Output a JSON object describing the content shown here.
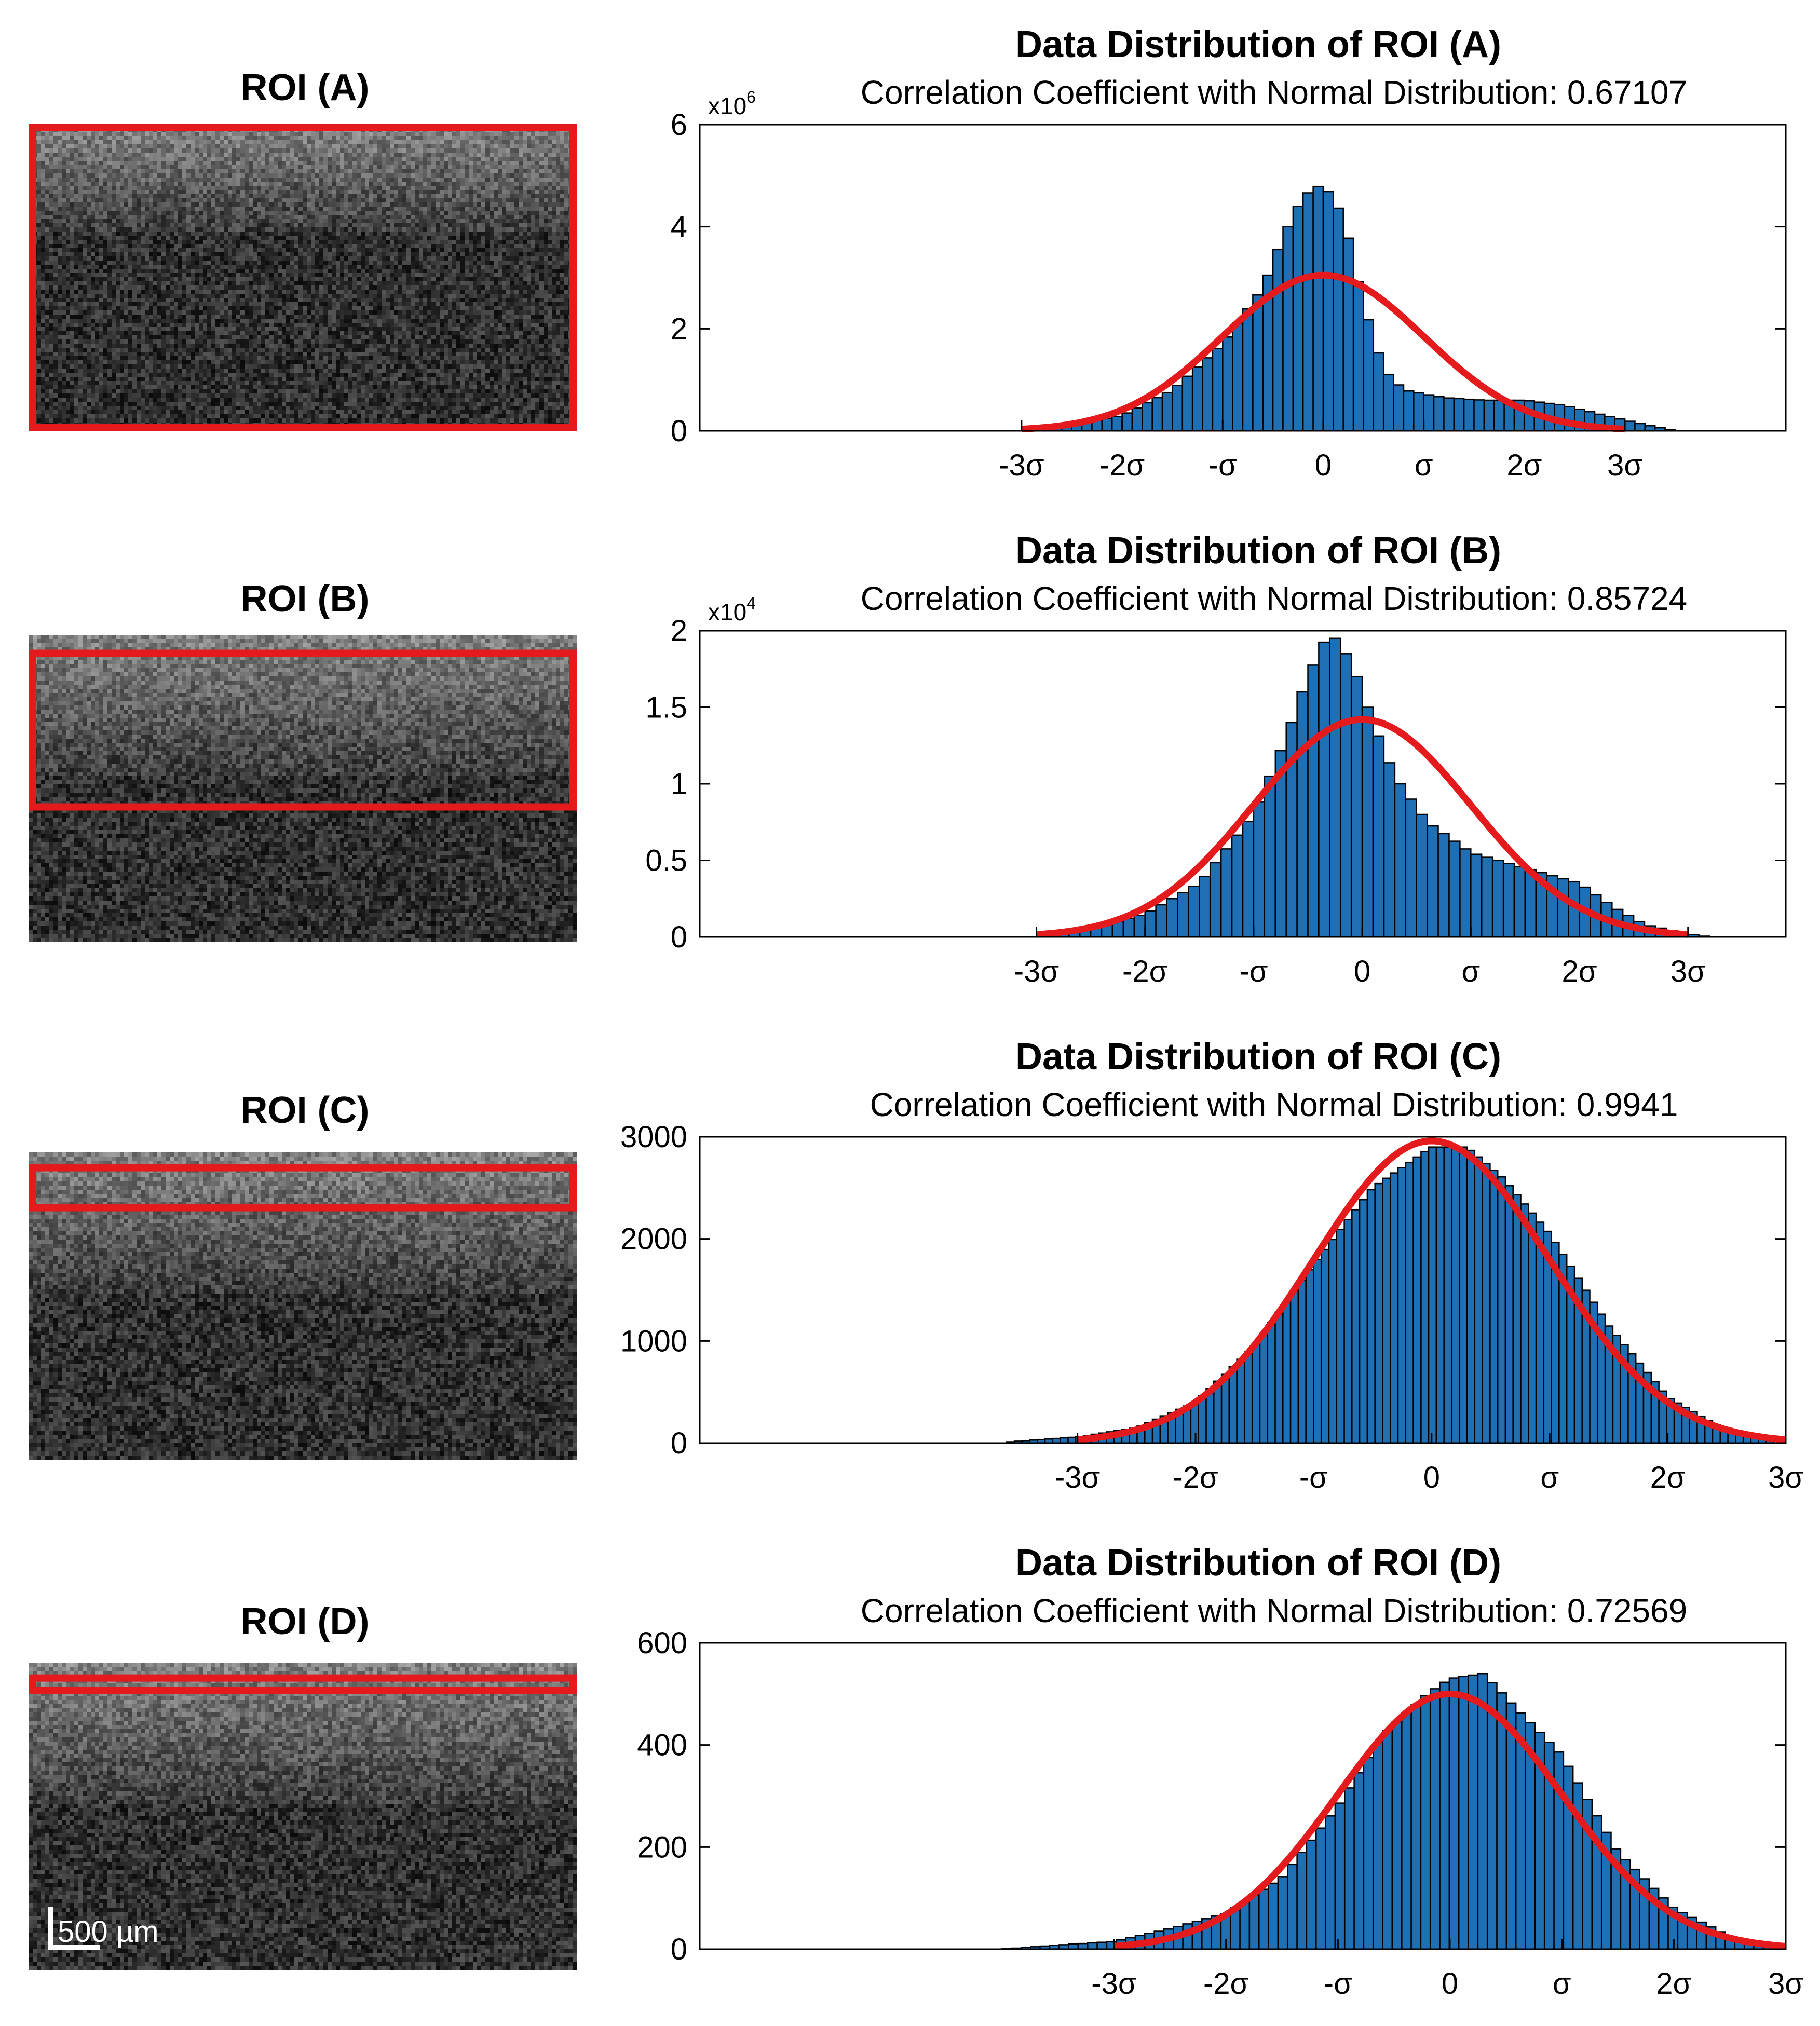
{
  "figure": {
    "scale_bar_label": "500 µm",
    "colors": {
      "bar_fill": "#1f6fb4",
      "bar_edge": "#000000",
      "fit_curve": "#e41a1c",
      "roi_box": "#e41a1c",
      "oct_background": "#3a3a3a"
    }
  },
  "rows": [
    {
      "roi_title": "ROI (A)",
      "roi_box": {
        "top_frac": 0.0,
        "bottom_frac": 1.0
      },
      "image_layer_frac": 0.35,
      "chart_title": "Data Distribution of ROI (A)",
      "chart_subtitle": "Correlation Coefficient with Normal Distribution: 0.67107"
    },
    {
      "roi_title": "ROI (B)",
      "roi_box": {
        "top_frac": 0.06,
        "bottom_frac": 0.56
      },
      "image_layer_frac": 0.45,
      "chart_title": "Data Distribution of ROI (B)",
      "chart_subtitle": "Correlation Coefficient with Normal Distribution: 0.85724"
    },
    {
      "roi_title": "ROI (C)",
      "roi_box": {
        "top_frac": 0.05,
        "bottom_frac": 0.18
      },
      "image_layer_frac": 0.45,
      "chart_title": "Data Distribution of ROI (C)",
      "chart_subtitle": "Correlation Coefficient with Normal Distribution: 0.9941"
    },
    {
      "roi_title": "ROI (D)",
      "roi_box": {
        "top_frac": 0.05,
        "bottom_frac": 0.09
      },
      "image_layer_frac": 0.45,
      "chart_title": "Data Distribution of ROI (D)",
      "chart_subtitle": "Correlation Coefficient with Normal Distribution: 0.72569"
    }
  ],
  "chart_data": [
    {
      "type": "bar",
      "title": "Data Distribution of ROI (A)",
      "subtitle": "Correlation Coefficient with Normal Distribution: 0.67107",
      "xlabel": "",
      "ylabel": "",
      "multiplier_label": "x10",
      "multiplier_exponent": "6",
      "x_range_sigma": [
        -6.2,
        4.6
      ],
      "ylim": [
        0,
        6
      ],
      "yticks": [
        0,
        2,
        4,
        6
      ],
      "ytick_labels": [
        "0",
        "2",
        "4",
        "6"
      ],
      "xtick_positions_sigma": [
        -3,
        -2,
        -1,
        0,
        1,
        2,
        3
      ],
      "xtick_labels": [
        "-3σ",
        "-2σ",
        "-σ",
        "0",
        "σ",
        "2σ",
        "3σ"
      ],
      "histogram": {
        "bin_width_sigma": 0.1,
        "points": [
          [
            -3.0,
            0.02
          ],
          [
            -2.5,
            0.1
          ],
          [
            -2.0,
            0.3
          ],
          [
            -1.5,
            0.8
          ],
          [
            -1.0,
            1.7
          ],
          [
            -0.6,
            2.8
          ],
          [
            -0.4,
            3.8
          ],
          [
            -0.2,
            4.6
          ],
          [
            0.0,
            4.85
          ],
          [
            0.2,
            4.2
          ],
          [
            0.4,
            2.5
          ],
          [
            0.6,
            1.2
          ],
          [
            0.8,
            0.8
          ],
          [
            1.2,
            0.65
          ],
          [
            1.6,
            0.6
          ],
          [
            2.0,
            0.6
          ],
          [
            2.4,
            0.5
          ],
          [
            2.8,
            0.3
          ],
          [
            3.2,
            0.12
          ],
          [
            3.5,
            0.0
          ]
        ]
      },
      "normal_fit": {
        "mean_sigma": 0.0,
        "peak": 3.05,
        "sd_sigma": 1.0,
        "range_sigma": [
          -3,
          3
        ]
      }
    },
    {
      "type": "bar",
      "title": "Data Distribution of ROI (B)",
      "subtitle": "Correlation Coefficient with Normal Distribution: 0.85724",
      "xlabel": "",
      "ylabel": "",
      "multiplier_label": "x10",
      "multiplier_exponent": "4",
      "x_range_sigma": [
        -6.1,
        3.9
      ],
      "ylim": [
        0,
        2
      ],
      "yticks": [
        0,
        0.5,
        1,
        1.5,
        2
      ],
      "ytick_labels": [
        "0",
        "0.5",
        "1",
        "1.5",
        "2"
      ],
      "xtick_positions_sigma": [
        -3,
        -2,
        -1,
        0,
        1,
        2,
        3
      ],
      "xtick_labels": [
        "-3σ",
        "-2σ",
        "-σ",
        "0",
        "σ",
        "2σ",
        "3σ"
      ],
      "histogram": {
        "bin_width_sigma": 0.1,
        "points": [
          [
            -3.0,
            0.0
          ],
          [
            -2.5,
            0.05
          ],
          [
            -2.0,
            0.15
          ],
          [
            -1.5,
            0.35
          ],
          [
            -1.0,
            0.8
          ],
          [
            -0.7,
            1.3
          ],
          [
            -0.5,
            1.7
          ],
          [
            -0.3,
            2.0
          ],
          [
            -0.1,
            1.8
          ],
          [
            0.1,
            1.4
          ],
          [
            0.3,
            1.05
          ],
          [
            0.6,
            0.75
          ],
          [
            1.0,
            0.55
          ],
          [
            1.5,
            0.45
          ],
          [
            2.0,
            0.35
          ],
          [
            2.3,
            0.2
          ],
          [
            2.6,
            0.08
          ],
          [
            3.0,
            0.02
          ],
          [
            3.2,
            0.0
          ]
        ]
      },
      "normal_fit": {
        "mean_sigma": 0.0,
        "peak": 1.42,
        "sd_sigma": 1.0,
        "range_sigma": [
          -3,
          3
        ]
      }
    },
    {
      "type": "bar",
      "title": "Data Distribution of ROI (C)",
      "subtitle": "Correlation Coefficient with Normal Distribution: 0.9941",
      "xlabel": "",
      "ylabel": "",
      "multiplier_label": "",
      "multiplier_exponent": "",
      "x_range_sigma": [
        -6.2,
        3.0
      ],
      "ylim": [
        0,
        3000
      ],
      "yticks": [
        0,
        1000,
        2000,
        3000
      ],
      "ytick_labels": [
        "0",
        "1000",
        "2000",
        "3000"
      ],
      "xtick_positions_sigma": [
        -3,
        -2,
        -1,
        0,
        1,
        2,
        3
      ],
      "xtick_labels": [
        "-3σ",
        "-2σ",
        "-σ",
        "0",
        "σ",
        "2σ",
        "3σ"
      ],
      "histogram": {
        "bin_width_sigma": 0.065,
        "points": [
          [
            -3.6,
            10
          ],
          [
            -3.0,
            60
          ],
          [
            -2.5,
            150
          ],
          [
            -2.0,
            400
          ],
          [
            -1.5,
            950
          ],
          [
            -1.0,
            1750
          ],
          [
            -0.5,
            2500
          ],
          [
            0.0,
            2900
          ],
          [
            0.3,
            2900
          ],
          [
            0.6,
            2600
          ],
          [
            1.0,
            2050
          ],
          [
            1.5,
            1150
          ],
          [
            2.0,
            450
          ],
          [
            2.5,
            120
          ],
          [
            2.9,
            20
          ]
        ]
      },
      "normal_fit": {
        "mean_sigma": 0.0,
        "peak": 2960,
        "sd_sigma": 1.0,
        "range_sigma": [
          -3,
          3
        ]
      }
    },
    {
      "type": "bar",
      "title": "Data Distribution of ROI (D)",
      "subtitle": "Correlation Coefficient with Normal Distribution: 0.72569",
      "xlabel": "",
      "ylabel": "",
      "multiplier_label": "",
      "multiplier_exponent": "",
      "x_range_sigma": [
        -6.7,
        3.0
      ],
      "ylim": [
        0,
        600
      ],
      "yticks": [
        0,
        200,
        400,
        600
      ],
      "ytick_labels": [
        "0",
        "200",
        "400",
        "600"
      ],
      "xtick_positions_sigma": [
        -3,
        -2,
        -1,
        0,
        1,
        2,
        3
      ],
      "xtick_labels": [
        "-3σ",
        "-2σ",
        "-σ",
        "0",
        "σ",
        "2σ",
        "3σ"
      ],
      "histogram": {
        "bin_width_sigma": 0.085,
        "points": [
          [
            -4.0,
            0
          ],
          [
            -3.5,
            8
          ],
          [
            -3.0,
            15
          ],
          [
            -2.5,
            40
          ],
          [
            -2.0,
            70
          ],
          [
            -1.5,
            140
          ],
          [
            -1.0,
            280
          ],
          [
            -0.6,
            420
          ],
          [
            -0.2,
            500
          ],
          [
            0.0,
            530
          ],
          [
            0.3,
            540
          ],
          [
            0.6,
            470
          ],
          [
            1.0,
            380
          ],
          [
            1.5,
            190
          ],
          [
            2.0,
            80
          ],
          [
            2.5,
            25
          ],
          [
            2.9,
            5
          ]
        ]
      },
      "normal_fit": {
        "mean_sigma": 0.0,
        "peak": 500,
        "sd_sigma": 1.0,
        "range_sigma": [
          -3,
          3
        ]
      }
    }
  ]
}
